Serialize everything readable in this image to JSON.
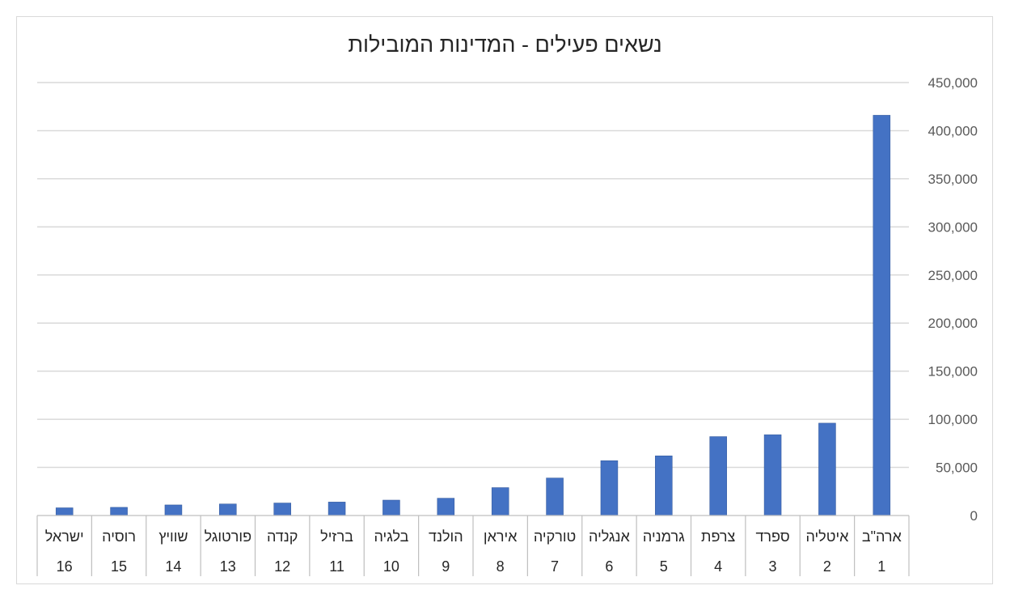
{
  "chart_data": {
    "type": "bar",
    "title": "נשאים פעילים - המדינות המובילות",
    "categories": [
      "ארה\"ב",
      "איטליה",
      "ספרד",
      "צרפת",
      "גרמניה",
      "אנגליה",
      "טורקיה",
      "איראן",
      "הולנד",
      "בלגיה",
      "ברזיל",
      "קנדה",
      "פורטוגל",
      "שוויץ",
      "רוסיה",
      "ישראל"
    ],
    "ranks": [
      "1",
      "2",
      "3",
      "4",
      "5",
      "6",
      "7",
      "8",
      "9",
      "10",
      "11",
      "12",
      "13",
      "14",
      "15",
      "16"
    ],
    "values": [
      416000,
      96000,
      84000,
      82000,
      62000,
      57000,
      39000,
      29000,
      18000,
      16000,
      14000,
      13000,
      12000,
      11000,
      8500,
      8000
    ],
    "yticks": [
      "0",
      "50,000",
      "100,000",
      "150,000",
      "200,000",
      "250,000",
      "300,000",
      "350,000",
      "400,000",
      "450,000"
    ],
    "ylim": [
      0,
      450000
    ],
    "y_axis_side": "right",
    "x_direction": "right-to-left",
    "grid": true,
    "legend": "none",
    "bar_color": "#4472c4"
  }
}
